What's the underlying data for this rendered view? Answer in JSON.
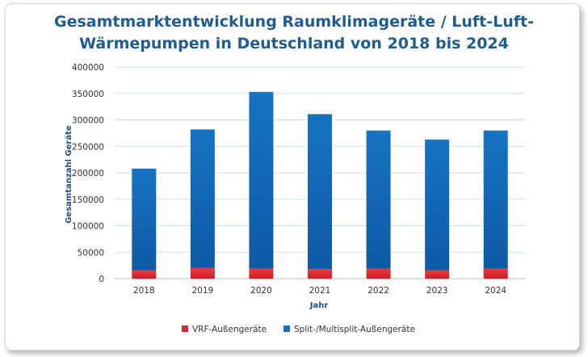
{
  "chart_data": {
    "type": "bar",
    "stacked": true,
    "title_lines": [
      "Gesamtmarktentwicklung Raumklimageräte / Luft-Luft-",
      "Wärmepumpen in Deutschland von 2018 bis 2024"
    ],
    "xlabel": "Jahr",
    "ylabel": "Gesamtanzahl Geräte",
    "categories": [
      "2018",
      "2019",
      "2020",
      "2021",
      "2022",
      "2023",
      "2024"
    ],
    "ylim": [
      0,
      400000
    ],
    "yticks": [
      "0",
      "50000",
      "100000",
      "150000",
      "200000",
      "250000",
      "300000",
      "350000",
      "400000"
    ],
    "grid": true,
    "legend_position": "bottom",
    "series": [
      {
        "name": "VRF-Außengeräte",
        "color": "#e0262a",
        "values": [
          16000,
          20000,
          19000,
          18000,
          19000,
          16000,
          19000
        ]
      },
      {
        "name": "Split-/Multisplit-Außengeräte",
        "color": "#1670be",
        "values": [
          192000,
          262000,
          334000,
          293000,
          261000,
          247000,
          261000
        ]
      }
    ]
  }
}
